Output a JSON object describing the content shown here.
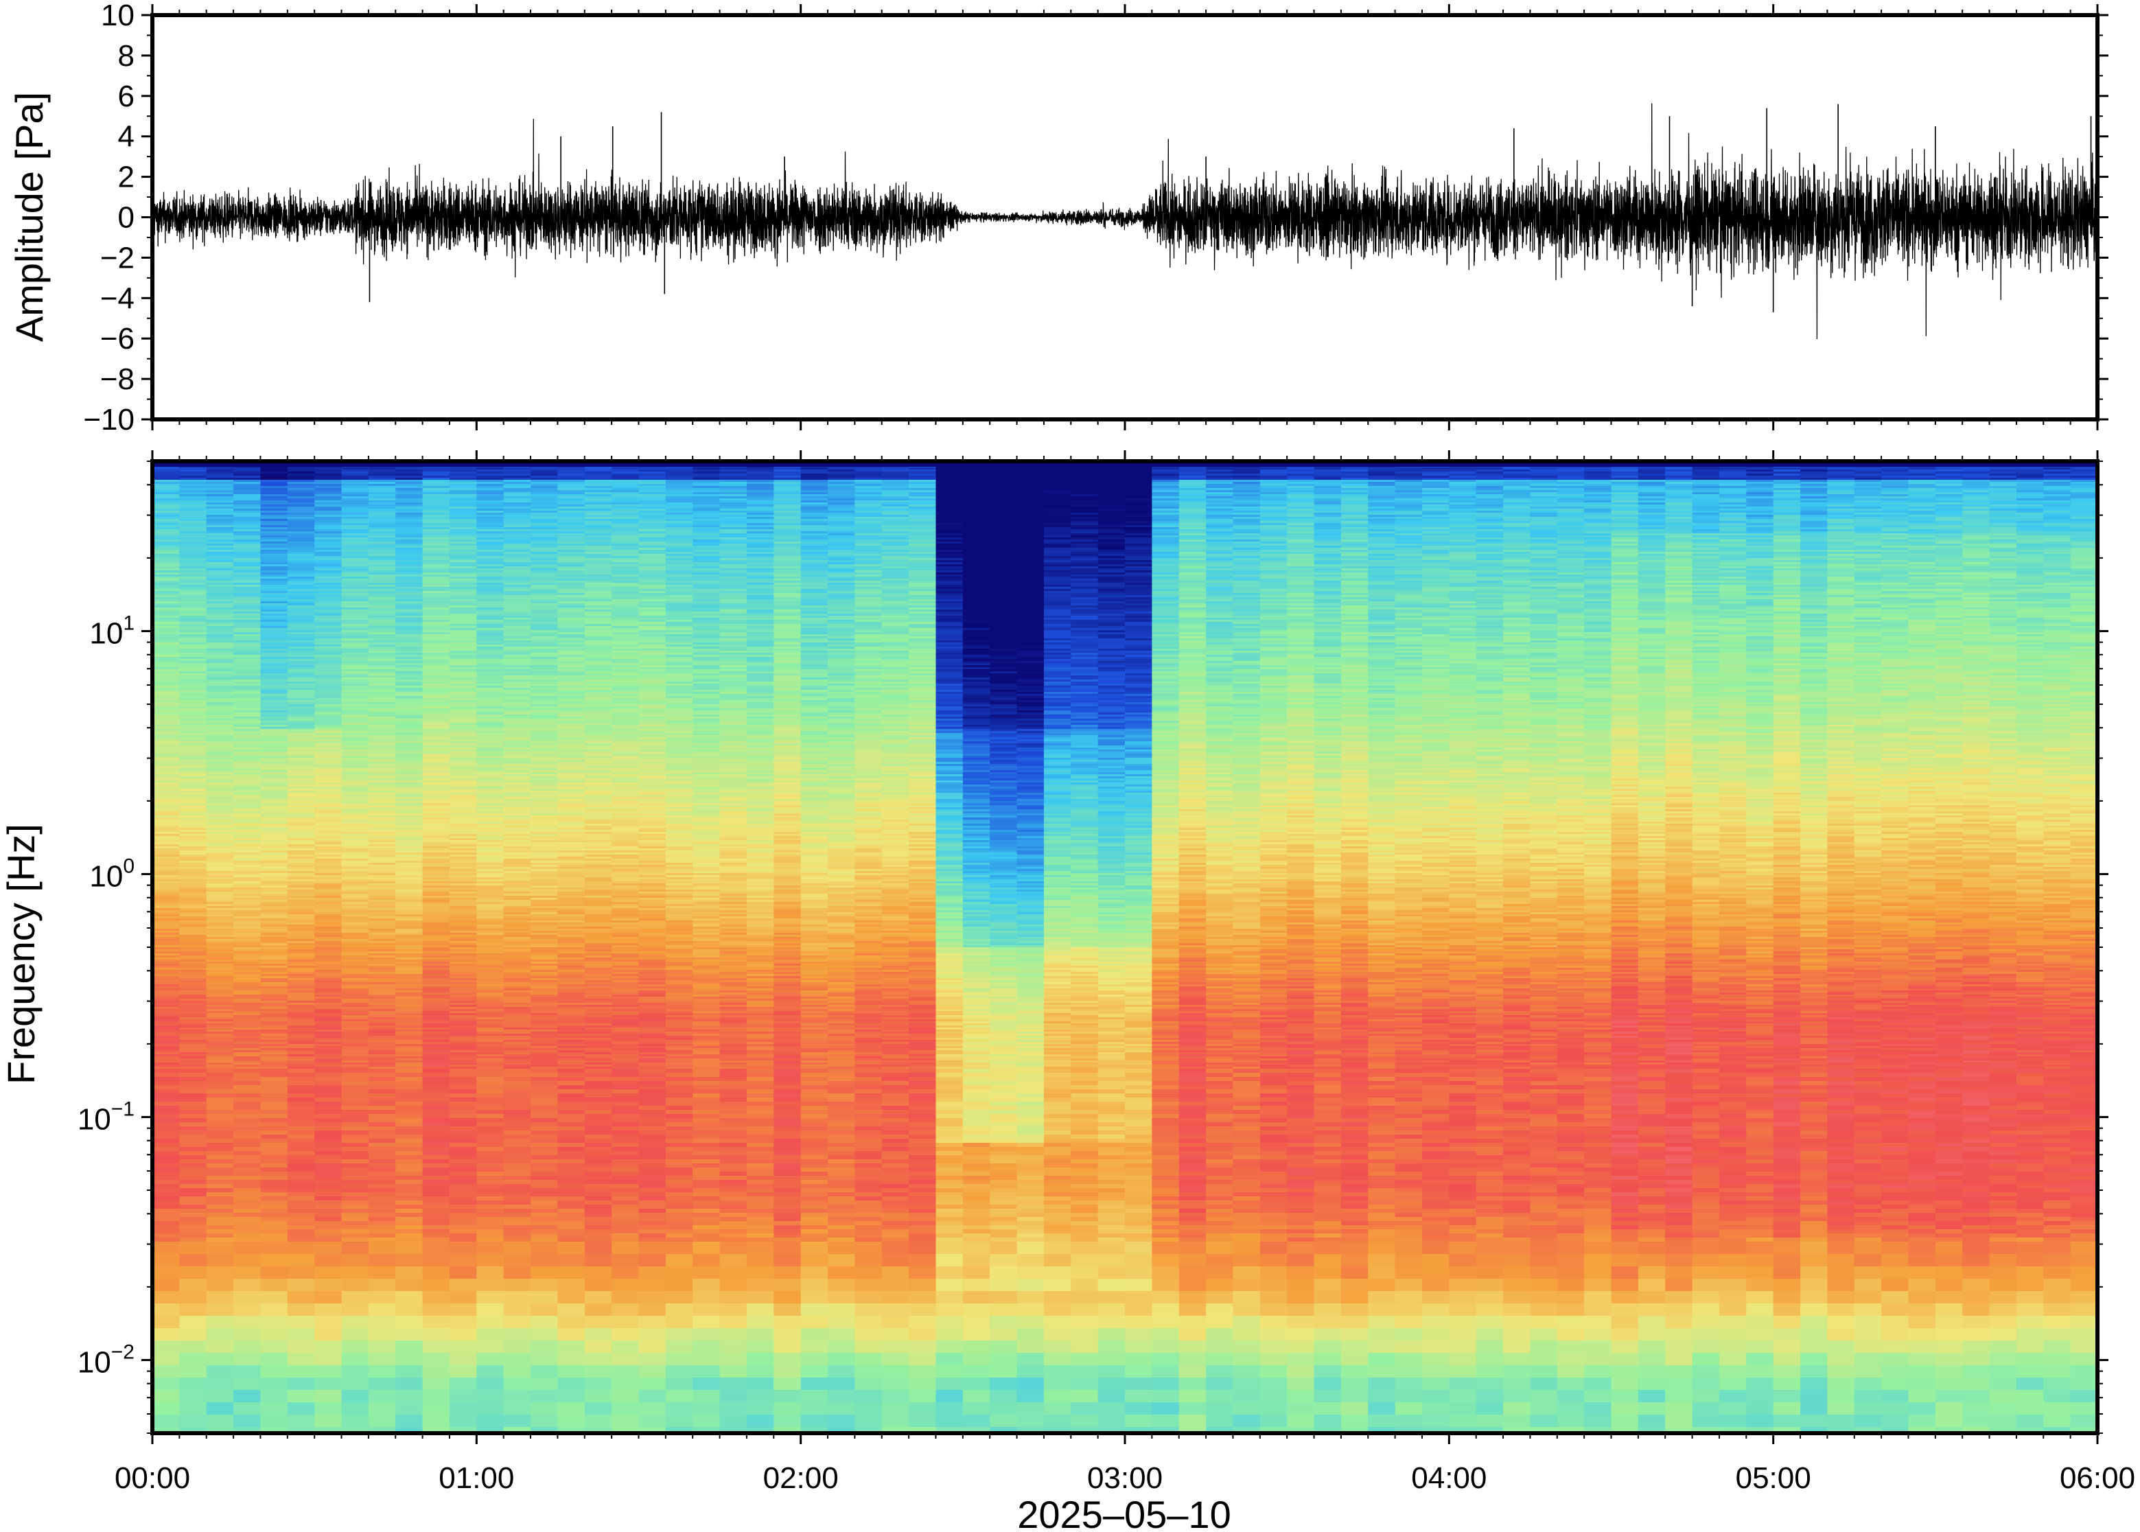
{
  "chart_data": [
    {
      "type": "line",
      "panel": "waveform",
      "xlabel": "",
      "ylabel": "Amplitude [Pa]",
      "xlim_hours": [
        0,
        6
      ],
      "ylim": [
        -10,
        10
      ],
      "yticks": [
        10,
        8,
        6,
        4,
        2,
        0,
        -2,
        -4,
        -6,
        -8,
        -10
      ],
      "ytick_labels": [
        "10",
        "8",
        "6",
        "4",
        "2",
        "0",
        "−2",
        "−4",
        "−6",
        "−8",
        "−10"
      ],
      "envelope_series": {
        "name": "",
        "time_hours": [
          0.0,
          0.3,
          0.62,
          0.63,
          1.0,
          1.6,
          2.0,
          2.3,
          2.45,
          2.5,
          2.7,
          2.8,
          2.95,
          3.05,
          3.1,
          3.5,
          4.0,
          4.5,
          4.7,
          5.0,
          5.2,
          5.5,
          6.0
        ],
        "amplitude_pa": [
          1.3,
          1.3,
          1.0,
          2.0,
          2.0,
          2.1,
          2.0,
          1.9,
          1.2,
          0.3,
          0.2,
          0.4,
          0.5,
          0.5,
          2.0,
          2.2,
          2.2,
          2.4,
          2.8,
          3.0,
          3.0,
          2.8,
          2.8
        ]
      },
      "spikes": [
        {
          "t": 0.67,
          "v": -4.2
        },
        {
          "t": 1.26,
          "v": 4.0
        },
        {
          "t": 1.42,
          "v": 4.5
        },
        {
          "t": 1.57,
          "v": 5.2
        },
        {
          "t": 1.58,
          "v": -3.8
        },
        {
          "t": 1.95,
          "v": 3.0
        },
        {
          "t": 3.25,
          "v": 3.0
        },
        {
          "t": 4.2,
          "v": 4.4
        },
        {
          "t": 4.68,
          "v": 5.0
        },
        {
          "t": 4.98,
          "v": 5.4
        },
        {
          "t": 5.2,
          "v": 5.6
        },
        {
          "t": 5.0,
          "v": -4.7
        },
        {
          "t": 4.75,
          "v": -4.4
        },
        {
          "t": 5.5,
          "v": 4.5
        },
        {
          "t": 5.98,
          "v": 5.0
        }
      ]
    },
    {
      "type": "heatmap",
      "panel": "spectrogram",
      "xlabel": "2025–05–10",
      "ylabel": "Frequency [Hz]",
      "xlim_hours": [
        0,
        6
      ],
      "ylim_hz": [
        0.005,
        50
      ],
      "yscale": "log",
      "yticks_hz": [
        10,
        1,
        0.1,
        0.01
      ],
      "ytick_labels": [
        {
          "base": "10",
          "exp": "1"
        },
        {
          "base": "10",
          "exp": "0"
        },
        {
          "base": "10",
          "exp": "−1"
        },
        {
          "base": "10",
          "exp": "−2"
        }
      ],
      "xticks_hours": [
        0,
        1,
        2,
        3,
        4,
        5,
        6
      ],
      "xtick_labels": [
        "00:00",
        "01:00",
        "02:00",
        "03:00",
        "04:00",
        "05:00",
        "06:00"
      ],
      "colormap": "rainbow (dark blue = low power, red/pink = high power)",
      "colors": {
        "lowest": "#0a0a78",
        "low": "#1e50dc",
        "mid_low": "#3cc8f0",
        "mid": "#96f0a0",
        "mid_high": "#f0e678",
        "high": "#f5a03c",
        "highest": "#f05050",
        "peak": "#f5828c"
      },
      "quiet_interval_hours": [
        2.45,
        3.05
      ],
      "quiet_interval_darkest_hours": [
        2.5,
        2.75
      ],
      "quieter_interval_hours": [
        0.35,
        0.62
      ]
    }
  ]
}
